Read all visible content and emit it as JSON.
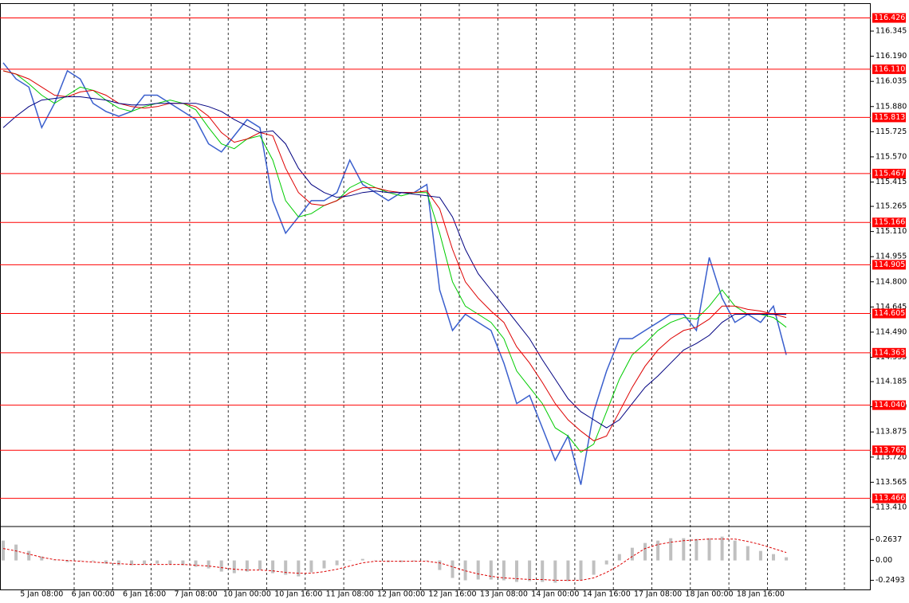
{
  "chart_data": [
    {
      "type": "line",
      "categories": [
        null,
        null,
        null,
        "5 Jan 08:00",
        null,
        null,
        null,
        "6 Jan 00:00",
        null,
        null,
        null,
        "6 Jan 16:00",
        null,
        null,
        null,
        "7 Jan 08:00",
        null,
        null,
        null,
        "10 Jan 00:00",
        null,
        null,
        null,
        "10 Jan 16:00",
        null,
        null,
        null,
        "11 Jan 08:00",
        null,
        null,
        null,
        "12 Jan 00:00",
        null,
        null,
        null,
        "12 Jan 16:00",
        null,
        null,
        null,
        "13 Jan 08:00",
        null,
        null,
        null,
        "14 Jan 00:00",
        null,
        null,
        null,
        "14 Jan 16:00",
        null,
        null,
        null,
        "17 Jan 08:00",
        null,
        null,
        null,
        "18 Jan 00:00",
        null,
        null,
        null,
        "18 Jan 16:00",
        null,
        null
      ],
      "series": [
        {
          "color": "#3a5fcd",
          "width": 1.5,
          "values": [
            116.15,
            116.05,
            116.0,
            115.75,
            115.9,
            116.1,
            116.05,
            115.9,
            115.85,
            115.82,
            115.85,
            115.95,
            115.95,
            115.9,
            115.85,
            115.8,
            115.65,
            115.6,
            115.7,
            115.8,
            115.75,
            115.3,
            115.1,
            115.2,
            115.3,
            115.3,
            115.35,
            115.55,
            115.4,
            115.35,
            115.3,
            115.35,
            115.35,
            115.4,
            114.75,
            114.5,
            114.6,
            114.55,
            114.5,
            114.3,
            114.05,
            114.1,
            113.9,
            113.7,
            113.85,
            113.55,
            114.0,
            114.25,
            114.45,
            114.45,
            114.5,
            114.55,
            114.6,
            114.6,
            114.5,
            114.95,
            114.7,
            114.55,
            114.6,
            114.55,
            114.65,
            114.35
          ]
        },
        {
          "color": "#00cc00",
          "width": 1,
          "values": [
            116.1,
            116.08,
            116.02,
            115.95,
            115.9,
            115.95,
            116.0,
            115.98,
            115.92,
            115.87,
            115.85,
            115.88,
            115.9,
            115.92,
            115.9,
            115.86,
            115.75,
            115.65,
            115.62,
            115.68,
            115.7,
            115.55,
            115.3,
            115.2,
            115.22,
            115.27,
            115.3,
            115.38,
            115.42,
            115.38,
            115.35,
            115.33,
            115.35,
            115.35,
            115.1,
            114.8,
            114.65,
            114.6,
            114.55,
            114.45,
            114.25,
            114.15,
            114.05,
            113.9,
            113.85,
            113.75,
            113.8,
            114.0,
            114.2,
            114.35,
            114.42,
            114.5,
            114.55,
            114.58,
            114.57,
            114.65,
            114.75,
            114.65,
            114.6,
            114.6,
            114.58,
            114.52
          ]
        },
        {
          "color": "#dd0000",
          "width": 1,
          "values": [
            116.1,
            116.08,
            116.05,
            116.0,
            115.95,
            115.94,
            115.97,
            115.98,
            115.95,
            115.9,
            115.88,
            115.87,
            115.88,
            115.9,
            115.9,
            115.88,
            115.82,
            115.72,
            115.66,
            115.68,
            115.72,
            115.7,
            115.5,
            115.35,
            115.28,
            115.27,
            115.3,
            115.35,
            115.38,
            115.38,
            115.36,
            115.35,
            115.35,
            115.36,
            115.25,
            115.0,
            114.8,
            114.7,
            114.62,
            114.55,
            114.4,
            114.3,
            114.18,
            114.05,
            113.95,
            113.88,
            113.82,
            113.85,
            114.0,
            114.15,
            114.28,
            114.38,
            114.45,
            114.5,
            114.52,
            114.57,
            114.65,
            114.65,
            114.63,
            114.62,
            114.6,
            114.58
          ]
        },
        {
          "color": "#000080",
          "width": 1,
          "values": [
            115.75,
            115.82,
            115.88,
            115.92,
            115.93,
            115.94,
            115.94,
            115.93,
            115.92,
            115.9,
            115.89,
            115.89,
            115.9,
            115.9,
            115.9,
            115.9,
            115.88,
            115.85,
            115.8,
            115.76,
            115.72,
            115.73,
            115.65,
            115.5,
            115.4,
            115.35,
            115.32,
            115.33,
            115.35,
            115.36,
            115.35,
            115.35,
            115.34,
            115.33,
            115.32,
            115.2,
            115.0,
            114.85,
            114.75,
            114.65,
            114.55,
            114.45,
            114.32,
            114.2,
            114.08,
            114.0,
            113.95,
            113.9,
            113.95,
            114.05,
            114.15,
            114.22,
            114.3,
            114.38,
            114.42,
            114.47,
            114.55,
            114.6,
            114.6,
            114.6,
            114.6,
            114.6
          ]
        }
      ],
      "ylim": [
        113.297,
        116.512
      ],
      "yticks": [
        {
          "value": 116.345,
          "label": "116.345"
        },
        {
          "value": 116.19,
          "label": "116.190"
        },
        {
          "value": 116.035,
          "label": "116.035"
        },
        {
          "value": 115.88,
          "label": "115.880"
        },
        {
          "value": 115.725,
          "label": "115.725"
        },
        {
          "value": 115.57,
          "label": "115.570"
        },
        {
          "value": 115.415,
          "label": "115.415"
        },
        {
          "value": 115.265,
          "label": "115.265"
        },
        {
          "value": 115.11,
          "label": "115.110"
        },
        {
          "value": 114.955,
          "label": "114.955"
        },
        {
          "value": 114.8,
          "label": "114.800"
        },
        {
          "value": 114.645,
          "label": "114.645"
        },
        {
          "value": 114.49,
          "label": "114.490"
        },
        {
          "value": 114.335,
          "label": "114.335"
        },
        {
          "value": 114.185,
          "label": "114.185"
        },
        {
          "value": 114.03,
          "label": "114.030"
        },
        {
          "value": 113.875,
          "label": "113.875"
        },
        {
          "value": 113.72,
          "label": "113.720"
        },
        {
          "value": 113.565,
          "label": "113.565"
        },
        {
          "value": 113.41,
          "label": "113.410"
        }
      ],
      "levels": [
        {
          "value": 116.426,
          "label": "116.426"
        },
        {
          "value": 116.11,
          "label": "116.110"
        },
        {
          "value": 115.813,
          "label": "115.813"
        },
        {
          "value": 115.467,
          "label": "115.467"
        },
        {
          "value": 115.166,
          "label": "115.166"
        },
        {
          "value": 114.905,
          "label": "114.905"
        },
        {
          "value": 114.605,
          "label": "114.605"
        },
        {
          "value": 114.363,
          "label": "114.363"
        },
        {
          "value": 114.04,
          "label": "114.040"
        },
        {
          "value": 113.762,
          "label": "113.762"
        },
        {
          "value": 113.466,
          "label": "113.466"
        }
      ],
      "level_color": "#ff0000"
    },
    {
      "type": "bar",
      "series": [
        {
          "kind": "bar",
          "color": "#c0c0c0",
          "values": [
            0.25,
            0.2,
            0.12,
            0.05,
            0.0,
            -0.02,
            0.0,
            -0.01,
            -0.04,
            -0.06,
            -0.06,
            -0.05,
            -0.04,
            -0.05,
            -0.06,
            -0.08,
            -0.1,
            -0.14,
            -0.16,
            -0.14,
            -0.12,
            -0.16,
            -0.18,
            -0.2,
            -0.15,
            -0.1,
            -0.06,
            0.0,
            0.02,
            0.0,
            -0.02,
            -0.02,
            -0.01,
            0.0,
            -0.12,
            -0.22,
            -0.25,
            -0.24,
            -0.24,
            -0.25,
            -0.27,
            -0.26,
            -0.27,
            -0.28,
            -0.26,
            -0.25,
            -0.18,
            -0.05,
            0.08,
            0.16,
            0.22,
            0.25,
            0.28,
            0.28,
            0.27,
            0.28,
            0.3,
            0.25,
            0.18,
            0.12,
            0.08,
            0.04
          ]
        },
        {
          "kind": "line",
          "dashed": true,
          "color": "#dd0000",
          "values": [
            0.15,
            0.12,
            0.08,
            0.04,
            0.01,
            0.0,
            -0.01,
            -0.02,
            -0.03,
            -0.04,
            -0.05,
            -0.05,
            -0.05,
            -0.05,
            -0.05,
            -0.06,
            -0.07,
            -0.09,
            -0.11,
            -0.12,
            -0.12,
            -0.13,
            -0.15,
            -0.16,
            -0.16,
            -0.14,
            -0.11,
            -0.07,
            -0.03,
            -0.01,
            -0.01,
            -0.01,
            -0.01,
            -0.01,
            -0.03,
            -0.08,
            -0.13,
            -0.17,
            -0.2,
            -0.22,
            -0.23,
            -0.24,
            -0.24,
            -0.25,
            -0.25,
            -0.25,
            -0.22,
            -0.15,
            -0.06,
            0.05,
            0.15,
            0.2,
            0.23,
            0.25,
            0.26,
            0.27,
            0.27,
            0.27,
            0.24,
            0.2,
            0.15,
            0.1
          ]
        }
      ],
      "ylim": [
        -0.365,
        0.417
      ],
      "yticks": [
        0.2637,
        {
          "value": 0,
          "label": "0.00"
        },
        -0.2493
      ]
    }
  ]
}
